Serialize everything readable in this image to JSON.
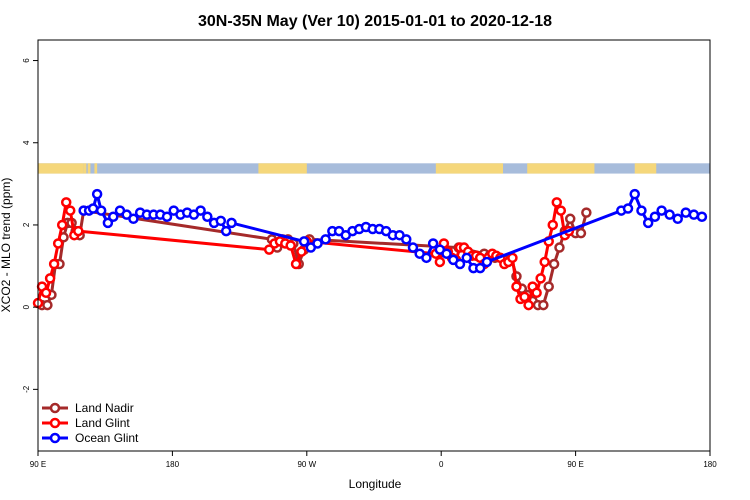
{
  "chart_data": {
    "type": "line",
    "title": "30N-35N May (Ver 10)   2015-01-01 to 2020-12-18",
    "xlabel": "Longitude",
    "ylabel": "XCO2 - MLO trend (ppm)",
    "xlim": [
      90,
      340
    ],
    "ylim": [
      -3.5,
      6.5
    ],
    "x_ticks": [
      {
        "value": 90,
        "label": "90 E"
      },
      {
        "value": 140,
        "label": "180"
      },
      {
        "value": 190,
        "label": "90 W"
      },
      {
        "value": 240,
        "label": "0"
      },
      {
        "value": 290,
        "label": "90 E"
      },
      {
        "value": 340,
        "label": "180"
      }
    ],
    "y_ticks": [
      {
        "value": -2,
        "label": "-2"
      },
      {
        "value": 0,
        "label": "0"
      },
      {
        "value": 2,
        "label": "2"
      },
      {
        "value": 4,
        "label": "4"
      },
      {
        "value": 6,
        "label": "6"
      }
    ],
    "legend": {
      "position": "bottom-left"
    },
    "land_ocean_band": {
      "ymin": 3.25,
      "ymax": 3.5,
      "ocean_color": "#a7bcdb",
      "land_color": "#f5d77b",
      "land_segments": [
        [
          90,
          107
        ],
        [
          107,
          108
        ],
        [
          108.5,
          109.5
        ],
        [
          111,
          112
        ],
        [
          172,
          190
        ],
        [
          238,
          263
        ],
        [
          272,
          297
        ],
        [
          312,
          320
        ]
      ]
    },
    "series": [
      {
        "name": "Land Nadir",
        "color": "#a52a2a",
        "points": [
          [
            91.5,
            0.05
          ],
          [
            93.5,
            0.05
          ],
          [
            95,
            0.3
          ],
          [
            96.5,
            1.05
          ],
          [
            98,
            1.05
          ],
          [
            99.5,
            1.7
          ],
          [
            101,
            2.05
          ],
          [
            102.5,
            2.05
          ],
          [
            104,
            1.85
          ],
          [
            105.5,
            1.75
          ],
          [
            107,
            2.35
          ],
          [
            177,
            1.65
          ],
          [
            179,
            1.45
          ],
          [
            181,
            1.65
          ],
          [
            183,
            1.65
          ],
          [
            185,
            1.55
          ],
          [
            187,
            1.05
          ],
          [
            189,
            1.4
          ],
          [
            191,
            1.65
          ],
          [
            246.5,
            1.45
          ],
          [
            256,
            1.3
          ],
          [
            258,
            1.25
          ],
          [
            260,
            1.2
          ],
          [
            262,
            1.2
          ],
          [
            264,
            1.15
          ],
          [
            266,
            1.2
          ],
          [
            268,
            0.75
          ],
          [
            270,
            0.45
          ],
          [
            272,
            0.3
          ],
          [
            274,
            0.15
          ],
          [
            276,
            0.05
          ],
          [
            278,
            0.05
          ],
          [
            280,
            0.5
          ],
          [
            282,
            1.05
          ],
          [
            284,
            1.45
          ],
          [
            286,
            1.85
          ],
          [
            288,
            2.15
          ],
          [
            290,
            1.8
          ],
          [
            292,
            1.8
          ],
          [
            294,
            2.3
          ]
        ]
      },
      {
        "name": "Land Glint",
        "color": "#ff0000",
        "points": [
          [
            90,
            0.1
          ],
          [
            91.5,
            0.5
          ],
          [
            93,
            0.35
          ],
          [
            94.5,
            0.7
          ],
          [
            96,
            1.05
          ],
          [
            97.5,
            1.55
          ],
          [
            99,
            2
          ],
          [
            100.5,
            2.55
          ],
          [
            102,
            2.35
          ],
          [
            103.5,
            1.75
          ],
          [
            105,
            1.85
          ],
          [
            176,
            1.4
          ],
          [
            178,
            1.55
          ],
          [
            180,
            1.6
          ],
          [
            182,
            1.55
          ],
          [
            184,
            1.5
          ],
          [
            186,
            1.05
          ],
          [
            188,
            1.35
          ],
          [
            190,
            1.6
          ],
          [
            238,
            1.3
          ],
          [
            239.5,
            1.1
          ],
          [
            241,
            1.55
          ],
          [
            242.5,
            1.35
          ],
          [
            244,
            1.2
          ],
          [
            245.5,
            1.15
          ],
          [
            247,
            1.45
          ],
          [
            248.5,
            1.45
          ],
          [
            250,
            1.35
          ],
          [
            251.5,
            1.25
          ],
          [
            253,
            1.25
          ],
          [
            254.5,
            1.2
          ],
          [
            256,
            1.05
          ],
          [
            257.5,
            1.2
          ],
          [
            259,
            1.3
          ],
          [
            260.5,
            1.25
          ],
          [
            262,
            1.2
          ],
          [
            263.5,
            1.05
          ],
          [
            265,
            1.1
          ],
          [
            266.5,
            1.2
          ],
          [
            268,
            0.5
          ],
          [
            269.5,
            0.2
          ],
          [
            271,
            0.25
          ],
          [
            272.5,
            0.05
          ],
          [
            274,
            0.5
          ],
          [
            275.5,
            0.35
          ],
          [
            277,
            0.7
          ],
          [
            278.5,
            1.1
          ],
          [
            280,
            1.6
          ],
          [
            281.5,
            2
          ],
          [
            283,
            2.55
          ],
          [
            284.5,
            2.35
          ],
          [
            286,
            1.75
          ],
          [
            287.5,
            1.85
          ]
        ]
      },
      {
        "name": "Ocean Glint",
        "color": "#0000ff",
        "points": [
          [
            107,
            2.35
          ],
          [
            109,
            2.35
          ],
          [
            110.5,
            2.4
          ],
          [
            112,
            2.75
          ],
          [
            113.5,
            2.35
          ],
          [
            116,
            2.05
          ],
          [
            118,
            2.2
          ],
          [
            120.5,
            2.35
          ],
          [
            123,
            2.25
          ],
          [
            125.5,
            2.15
          ],
          [
            128,
            2.3
          ],
          [
            130.5,
            2.25
          ],
          [
            133,
            2.25
          ],
          [
            135.5,
            2.25
          ],
          [
            138,
            2.2
          ],
          [
            140.5,
            2.35
          ],
          [
            143,
            2.25
          ],
          [
            145.5,
            2.3
          ],
          [
            148,
            2.25
          ],
          [
            150.5,
            2.35
          ],
          [
            153,
            2.2
          ],
          [
            155.5,
            2.05
          ],
          [
            158,
            2.1
          ],
          [
            160,
            1.85
          ],
          [
            162,
            2.05
          ],
          [
            189,
            1.6
          ],
          [
            191.5,
            1.45
          ],
          [
            194,
            1.55
          ],
          [
            197,
            1.65
          ],
          [
            199.5,
            1.85
          ],
          [
            202,
            1.85
          ],
          [
            204.5,
            1.75
          ],
          [
            207,
            1.85
          ],
          [
            209.5,
            1.9
          ],
          [
            212,
            1.95
          ],
          [
            214.5,
            1.9
          ],
          [
            217,
            1.9
          ],
          [
            219.5,
            1.85
          ],
          [
            222,
            1.75
          ],
          [
            224.5,
            1.75
          ],
          [
            227,
            1.65
          ],
          [
            229.5,
            1.45
          ],
          [
            232,
            1.3
          ],
          [
            234.5,
            1.2
          ],
          [
            237,
            1.55
          ],
          [
            239.5,
            1.4
          ],
          [
            242,
            1.3
          ],
          [
            244.5,
            1.15
          ],
          [
            247,
            1.05
          ],
          [
            249.5,
            1.2
          ],
          [
            252,
            0.95
          ],
          [
            254.5,
            0.95
          ],
          [
            257,
            1.1
          ],
          [
            307,
            2.35
          ],
          [
            309.5,
            2.4
          ],
          [
            312,
            2.75
          ],
          [
            314.5,
            2.35
          ],
          [
            317,
            2.05
          ],
          [
            319.5,
            2.2
          ],
          [
            322,
            2.35
          ],
          [
            325,
            2.25
          ],
          [
            328,
            2.15
          ],
          [
            331,
            2.3
          ],
          [
            334,
            2.25
          ],
          [
            337,
            2.2
          ]
        ]
      }
    ]
  }
}
